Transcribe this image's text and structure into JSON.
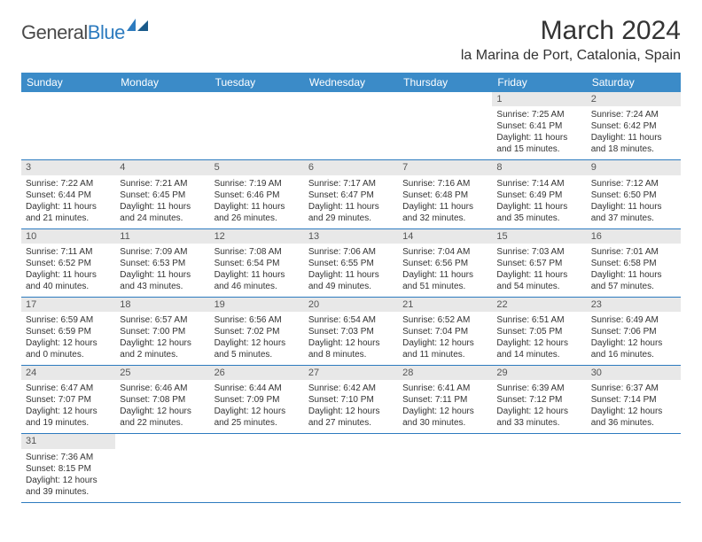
{
  "logo": {
    "text1": "General",
    "text2": "Blue"
  },
  "title": "March 2024",
  "location": "la Marina de Port, Catalonia, Spain",
  "colors": {
    "header_bg": "#3b8bc8",
    "header_text": "#ffffff",
    "row_border": "#2d7bbf",
    "daynum_bg": "#e8e8e8",
    "text": "#333333",
    "logo_gray": "#4a4a4a",
    "logo_blue": "#2d7bbf"
  },
  "dayHeaders": [
    "Sunday",
    "Monday",
    "Tuesday",
    "Wednesday",
    "Thursday",
    "Friday",
    "Saturday"
  ],
  "weeks": [
    [
      null,
      null,
      null,
      null,
      null,
      {
        "n": "1",
        "sr": "7:25 AM",
        "ss": "6:41 PM",
        "dl": "11 hours and 15 minutes."
      },
      {
        "n": "2",
        "sr": "7:24 AM",
        "ss": "6:42 PM",
        "dl": "11 hours and 18 minutes."
      }
    ],
    [
      {
        "n": "3",
        "sr": "7:22 AM",
        "ss": "6:44 PM",
        "dl": "11 hours and 21 minutes."
      },
      {
        "n": "4",
        "sr": "7:21 AM",
        "ss": "6:45 PM",
        "dl": "11 hours and 24 minutes."
      },
      {
        "n": "5",
        "sr": "7:19 AM",
        "ss": "6:46 PM",
        "dl": "11 hours and 26 minutes."
      },
      {
        "n": "6",
        "sr": "7:17 AM",
        "ss": "6:47 PM",
        "dl": "11 hours and 29 minutes."
      },
      {
        "n": "7",
        "sr": "7:16 AM",
        "ss": "6:48 PM",
        "dl": "11 hours and 32 minutes."
      },
      {
        "n": "8",
        "sr": "7:14 AM",
        "ss": "6:49 PM",
        "dl": "11 hours and 35 minutes."
      },
      {
        "n": "9",
        "sr": "7:12 AM",
        "ss": "6:50 PM",
        "dl": "11 hours and 37 minutes."
      }
    ],
    [
      {
        "n": "10",
        "sr": "7:11 AM",
        "ss": "6:52 PM",
        "dl": "11 hours and 40 minutes."
      },
      {
        "n": "11",
        "sr": "7:09 AM",
        "ss": "6:53 PM",
        "dl": "11 hours and 43 minutes."
      },
      {
        "n": "12",
        "sr": "7:08 AM",
        "ss": "6:54 PM",
        "dl": "11 hours and 46 minutes."
      },
      {
        "n": "13",
        "sr": "7:06 AM",
        "ss": "6:55 PM",
        "dl": "11 hours and 49 minutes."
      },
      {
        "n": "14",
        "sr": "7:04 AM",
        "ss": "6:56 PM",
        "dl": "11 hours and 51 minutes."
      },
      {
        "n": "15",
        "sr": "7:03 AM",
        "ss": "6:57 PM",
        "dl": "11 hours and 54 minutes."
      },
      {
        "n": "16",
        "sr": "7:01 AM",
        "ss": "6:58 PM",
        "dl": "11 hours and 57 minutes."
      }
    ],
    [
      {
        "n": "17",
        "sr": "6:59 AM",
        "ss": "6:59 PM",
        "dl": "12 hours and 0 minutes."
      },
      {
        "n": "18",
        "sr": "6:57 AM",
        "ss": "7:00 PM",
        "dl": "12 hours and 2 minutes."
      },
      {
        "n": "19",
        "sr": "6:56 AM",
        "ss": "7:02 PM",
        "dl": "12 hours and 5 minutes."
      },
      {
        "n": "20",
        "sr": "6:54 AM",
        "ss": "7:03 PM",
        "dl": "12 hours and 8 minutes."
      },
      {
        "n": "21",
        "sr": "6:52 AM",
        "ss": "7:04 PM",
        "dl": "12 hours and 11 minutes."
      },
      {
        "n": "22",
        "sr": "6:51 AM",
        "ss": "7:05 PM",
        "dl": "12 hours and 14 minutes."
      },
      {
        "n": "23",
        "sr": "6:49 AM",
        "ss": "7:06 PM",
        "dl": "12 hours and 16 minutes."
      }
    ],
    [
      {
        "n": "24",
        "sr": "6:47 AM",
        "ss": "7:07 PM",
        "dl": "12 hours and 19 minutes."
      },
      {
        "n": "25",
        "sr": "6:46 AM",
        "ss": "7:08 PM",
        "dl": "12 hours and 22 minutes."
      },
      {
        "n": "26",
        "sr": "6:44 AM",
        "ss": "7:09 PM",
        "dl": "12 hours and 25 minutes."
      },
      {
        "n": "27",
        "sr": "6:42 AM",
        "ss": "7:10 PM",
        "dl": "12 hours and 27 minutes."
      },
      {
        "n": "28",
        "sr": "6:41 AM",
        "ss": "7:11 PM",
        "dl": "12 hours and 30 minutes."
      },
      {
        "n": "29",
        "sr": "6:39 AM",
        "ss": "7:12 PM",
        "dl": "12 hours and 33 minutes."
      },
      {
        "n": "30",
        "sr": "6:37 AM",
        "ss": "7:14 PM",
        "dl": "12 hours and 36 minutes."
      }
    ],
    [
      {
        "n": "31",
        "sr": "7:36 AM",
        "ss": "8:15 PM",
        "dl": "12 hours and 39 minutes."
      },
      null,
      null,
      null,
      null,
      null,
      null
    ]
  ],
  "labels": {
    "sunrise": "Sunrise: ",
    "sunset": "Sunset: ",
    "daylight": "Daylight: "
  }
}
